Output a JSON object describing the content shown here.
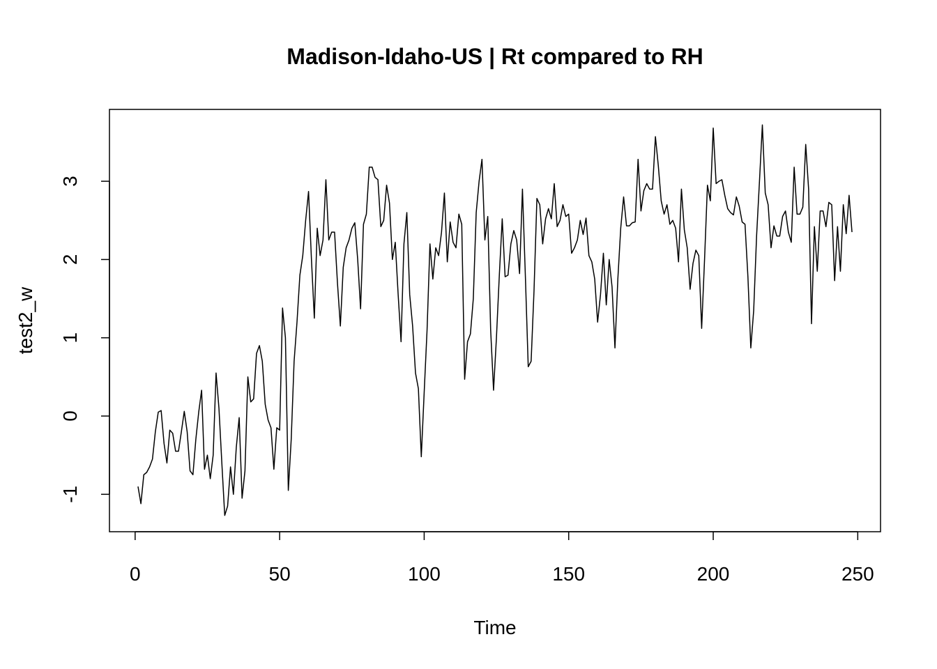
{
  "chart_data": {
    "type": "line",
    "title": "Madison-Idaho-US | Rt compared to RH",
    "xlabel": "Time",
    "ylabel": "test2_w",
    "color": "#000000",
    "x": [
      1,
      2,
      3,
      4,
      5,
      6,
      7,
      8,
      9,
      10,
      11,
      12,
      13,
      14,
      15,
      16,
      17,
      18,
      19,
      20,
      21,
      22,
      23,
      24,
      25,
      26,
      27,
      28,
      29,
      30,
      31,
      32,
      33,
      34,
      35,
      36,
      37,
      38,
      39,
      40,
      41,
      42,
      43,
      44,
      45,
      46,
      47,
      48,
      49,
      50,
      51,
      52,
      53,
      54,
      55,
      56,
      57,
      58,
      59,
      60,
      61,
      62,
      63,
      64,
      65,
      66,
      67,
      68,
      69,
      70,
      71,
      72,
      73,
      74,
      75,
      76,
      77,
      78,
      79,
      80,
      81,
      82,
      83,
      84,
      85,
      86,
      87,
      88,
      89,
      90,
      91,
      92,
      93,
      94,
      95,
      96,
      97,
      98,
      99,
      100,
      101,
      102,
      103,
      104,
      105,
      106,
      107,
      108,
      109,
      110,
      111,
      112,
      113,
      114,
      115,
      116,
      117,
      118,
      119,
      120,
      121,
      122,
      123,
      124,
      125,
      126,
      127,
      128,
      129,
      130,
      131,
      132,
      133,
      134,
      135,
      136,
      137,
      138,
      139,
      140,
      141,
      142,
      143,
      144,
      145,
      146,
      147,
      148,
      149,
      150,
      151,
      152,
      153,
      154,
      155,
      156,
      157,
      158,
      159,
      160,
      161,
      162,
      163,
      164,
      165,
      166,
      167,
      168,
      169,
      170,
      171,
      172,
      173,
      174,
      175,
      176,
      177,
      178,
      179,
      180,
      181,
      182,
      183,
      184,
      185,
      186,
      187,
      188,
      189,
      190,
      191,
      192,
      193,
      194,
      195,
      196,
      197,
      198,
      199,
      200,
      201,
      202,
      203,
      204,
      205,
      206,
      207,
      208,
      209,
      210,
      211,
      212,
      213,
      214,
      215,
      216,
      217,
      218,
      219,
      220,
      221,
      222,
      223,
      224,
      225,
      226,
      227,
      228,
      229,
      230,
      231,
      232,
      233,
      234,
      235,
      236,
      237,
      238,
      239,
      240,
      241,
      242,
      243,
      244,
      245,
      246,
      247,
      248
    ],
    "values": [
      -0.9,
      -1.12,
      -0.75,
      -0.72,
      -0.65,
      -0.55,
      -0.2,
      0.05,
      0.07,
      -0.35,
      -0.6,
      -0.18,
      -0.22,
      -0.45,
      -0.45,
      -0.2,
      0.06,
      -0.2,
      -0.7,
      -0.75,
      -0.3,
      0.05,
      0.33,
      -0.68,
      -0.5,
      -0.8,
      -0.5,
      0.55,
      0.1,
      -0.6,
      -1.27,
      -1.15,
      -0.65,
      -1.0,
      -0.4,
      -0.02,
      -1.05,
      -0.7,
      0.5,
      0.18,
      0.22,
      0.8,
      0.9,
      0.7,
      0.15,
      -0.05,
      -0.15,
      -0.68,
      -0.15,
      -0.18,
      1.38,
      1.0,
      -0.95,
      -0.3,
      0.7,
      1.2,
      1.8,
      2.05,
      2.5,
      2.87,
      2.0,
      1.25,
      2.4,
      2.05,
      2.25,
      3.02,
      2.25,
      2.35,
      2.35,
      1.7,
      1.15,
      1.9,
      2.15,
      2.25,
      2.4,
      2.47,
      2.0,
      1.37,
      2.45,
      2.58,
      3.18,
      3.18,
      3.05,
      3.02,
      2.42,
      2.5,
      2.95,
      2.72,
      2.0,
      2.22,
      1.55,
      0.95,
      2.2,
      2.6,
      1.55,
      1.15,
      0.55,
      0.35,
      -0.52,
      0.3,
      1.1,
      2.2,
      1.75,
      2.15,
      2.05,
      2.35,
      2.85,
      1.97,
      2.48,
      2.22,
      2.15,
      2.58,
      2.45,
      0.47,
      0.95,
      1.05,
      1.5,
      2.6,
      3.0,
      3.28,
      2.25,
      2.55,
      1.1,
      0.33,
      1.0,
      1.8,
      2.52,
      1.78,
      1.8,
      2.2,
      2.37,
      2.25,
      1.82,
      2.9,
      1.8,
      0.63,
      0.7,
      1.6,
      2.78,
      2.7,
      2.2,
      2.52,
      2.65,
      2.52,
      2.97,
      2.42,
      2.5,
      2.7,
      2.55,
      2.58,
      2.08,
      2.15,
      2.25,
      2.5,
      2.32,
      2.53,
      2.05,
      1.97,
      1.75,
      1.2,
      1.55,
      2.08,
      1.42,
      2.0,
      1.65,
      0.87,
      1.75,
      2.4,
      2.8,
      2.43,
      2.43,
      2.47,
      2.48,
      3.28,
      2.62,
      2.88,
      2.97,
      2.9,
      2.9,
      3.57,
      3.2,
      2.75,
      2.58,
      2.7,
      2.45,
      2.5,
      2.4,
      1.97,
      2.9,
      2.38,
      2.15,
      1.62,
      1.95,
      2.12,
      2.05,
      1.12,
      2.0,
      2.95,
      2.75,
      3.68,
      2.97,
      3.0,
      3.02,
      2.82,
      2.65,
      2.6,
      2.57,
      2.8,
      2.68,
      2.48,
      2.45,
      1.78,
      0.87,
      1.35,
      2.3,
      3.0,
      3.72,
      2.85,
      2.7,
      2.15,
      2.43,
      2.3,
      2.3,
      2.55,
      2.62,
      2.35,
      2.22,
      3.18,
      2.58,
      2.58,
      2.67,
      3.47,
      2.9,
      1.18,
      2.42,
      1.85,
      2.62,
      2.62,
      2.42,
      2.73,
      2.7,
      1.73,
      2.42,
      1.85,
      2.7,
      2.33,
      2.82,
      2.35
    ],
    "xlim": [
      -8.88,
      257.88
    ],
    "ylim": [
      -1.478,
      3.918
    ],
    "xticks": [
      0,
      50,
      100,
      150,
      200,
      250
    ],
    "yticks": [
      -1,
      0,
      1,
      2,
      3
    ]
  }
}
